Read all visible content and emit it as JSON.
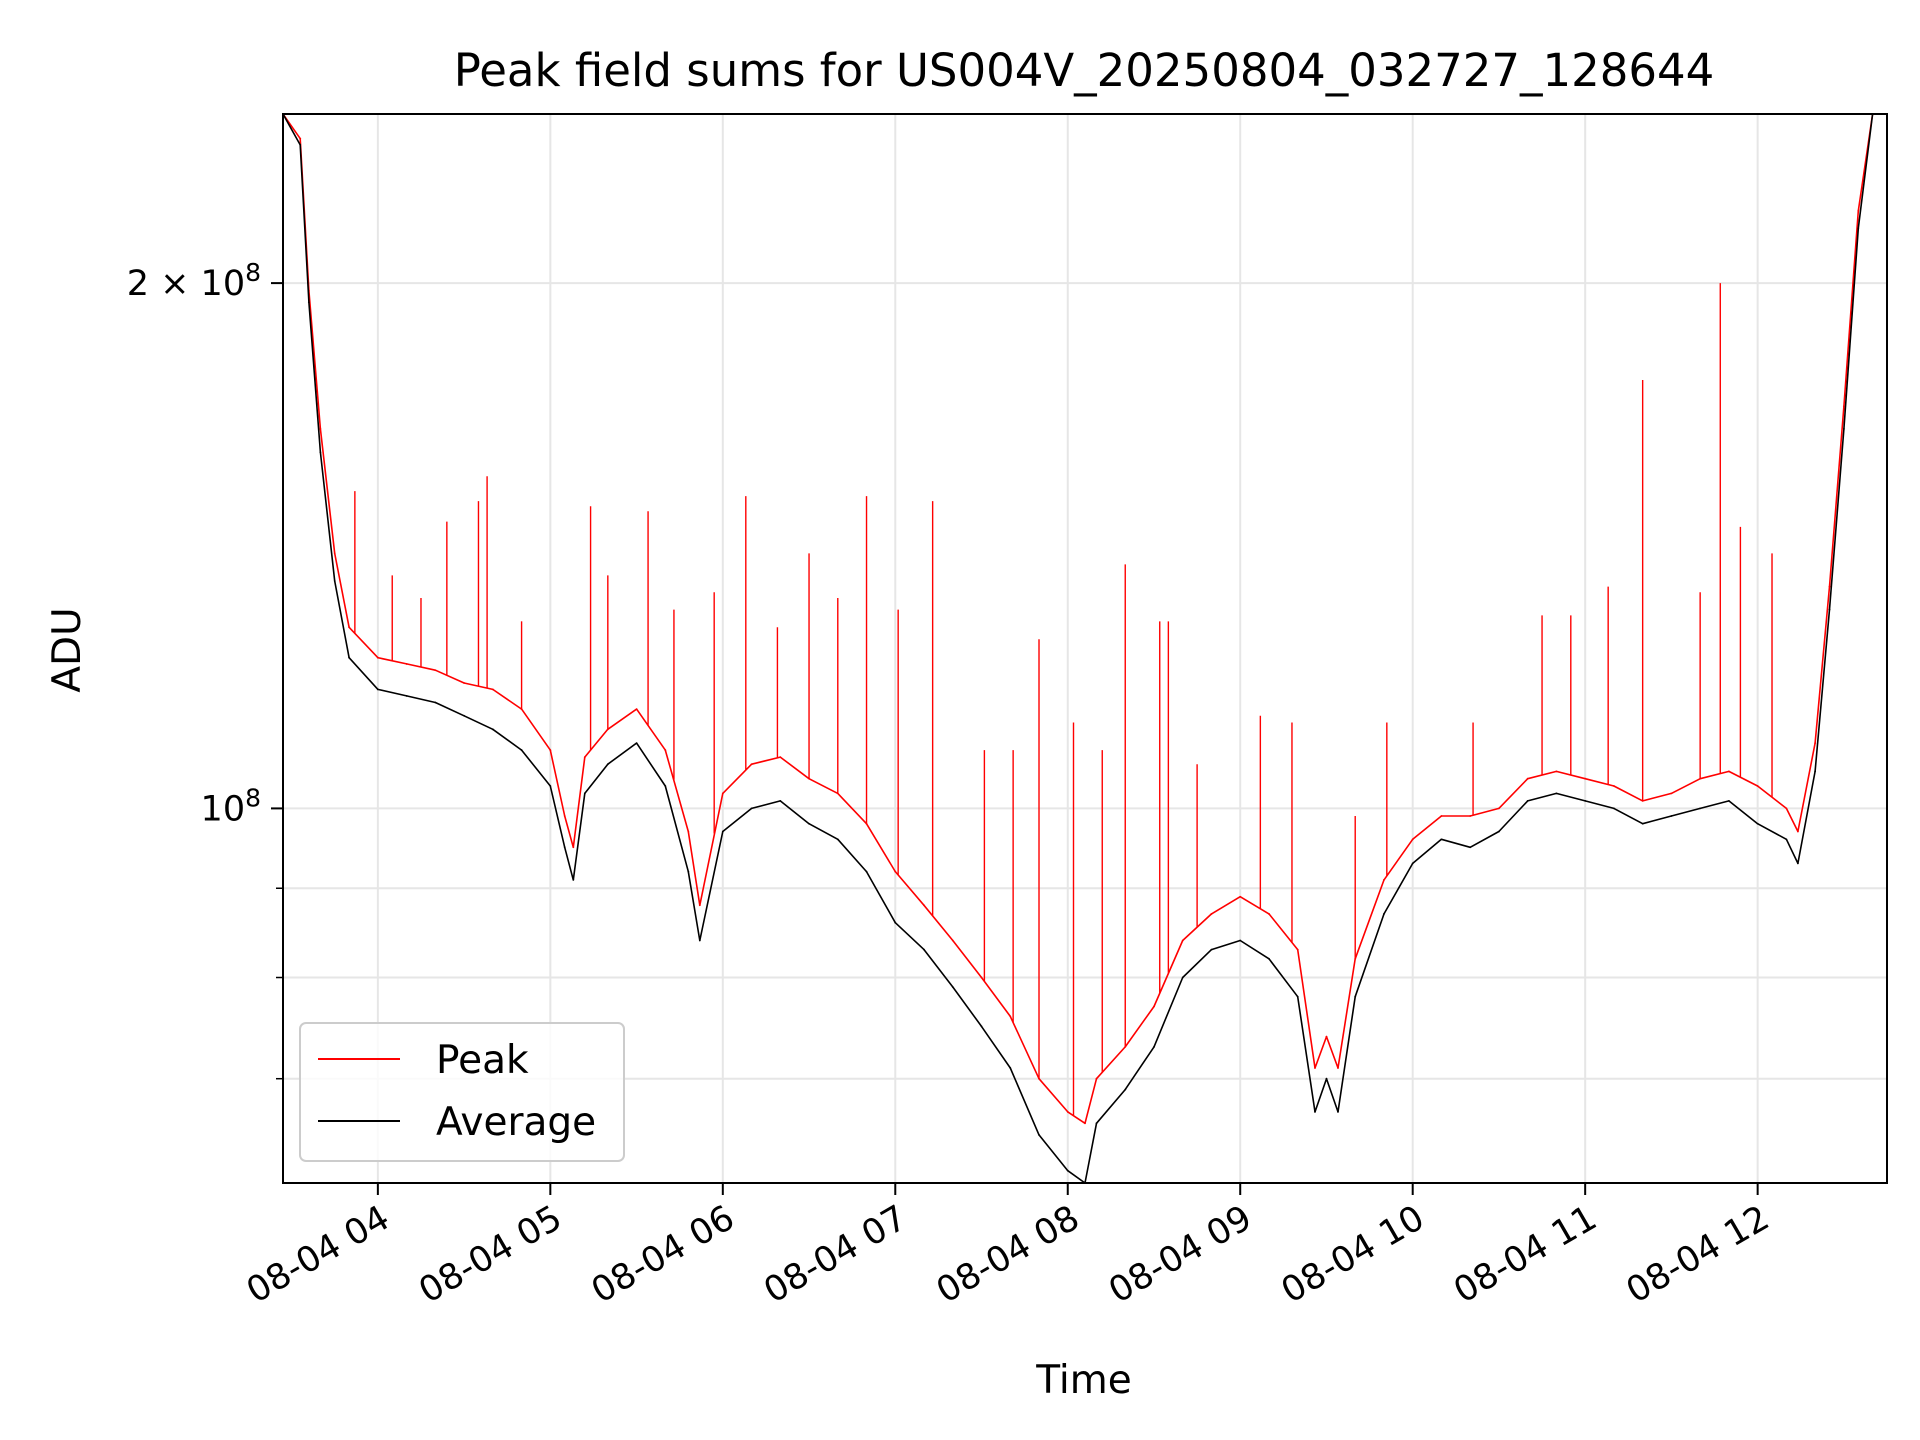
{
  "chart_data": {
    "type": "line",
    "title": "Peak field sums for US004V_20250804_032727_128644",
    "xlabel": "Time",
    "ylabel": "ADU",
    "yscale": "log",
    "xlim": [
      "2025-08-04T03:27",
      "2025-08-04T12:45"
    ],
    "ylim": [
      61000000.0,
      250000000.0
    ],
    "x_ticks": [
      {
        "value": "2025-08-04T04:00",
        "label": "08-04 04"
      },
      {
        "value": "2025-08-04T05:00",
        "label": "08-04 05"
      },
      {
        "value": "2025-08-04T06:00",
        "label": "08-04 06"
      },
      {
        "value": "2025-08-04T07:00",
        "label": "08-04 07"
      },
      {
        "value": "2025-08-04T08:00",
        "label": "08-04 08"
      },
      {
        "value": "2025-08-04T09:00",
        "label": "08-04 09"
      },
      {
        "value": "2025-08-04T10:00",
        "label": "08-04 10"
      },
      {
        "value": "2025-08-04T11:00",
        "label": "08-04 11"
      },
      {
        "value": "2025-08-04T12:00",
        "label": "08-04 12"
      }
    ],
    "y_ticks": [
      {
        "value": 100000000,
        "label": "10^8",
        "base": "10",
        "exp": "8"
      },
      {
        "value": 200000000,
        "label": "2×10^8",
        "base": "2 × 10",
        "exp": "8"
      }
    ],
    "y_minor_ticks": [
      70000000,
      80000000,
      90000000
    ],
    "grid": true,
    "legend_position": "lower-left",
    "series": [
      {
        "name": "Average",
        "color": "#000000",
        "x": [
          "2025-08-04T03:27",
          "2025-08-04T03:33",
          "2025-08-04T03:36",
          "2025-08-04T03:40",
          "2025-08-04T03:45",
          "2025-08-04T03:50",
          "2025-08-04T04:00",
          "2025-08-04T04:10",
          "2025-08-04T04:20",
          "2025-08-04T04:30",
          "2025-08-04T04:40",
          "2025-08-04T04:50",
          "2025-08-04T05:00",
          "2025-08-04T05:05",
          "2025-08-04T05:08",
          "2025-08-04T05:12",
          "2025-08-04T05:20",
          "2025-08-04T05:30",
          "2025-08-04T05:40",
          "2025-08-04T05:48",
          "2025-08-04T05:52",
          "2025-08-04T06:00",
          "2025-08-04T06:10",
          "2025-08-04T06:20",
          "2025-08-04T06:30",
          "2025-08-04T06:40",
          "2025-08-04T06:50",
          "2025-08-04T07:00",
          "2025-08-04T07:10",
          "2025-08-04T07:20",
          "2025-08-04T07:30",
          "2025-08-04T07:40",
          "2025-08-04T07:50",
          "2025-08-04T08:00",
          "2025-08-04T08:06",
          "2025-08-04T08:10",
          "2025-08-04T08:20",
          "2025-08-04T08:30",
          "2025-08-04T08:40",
          "2025-08-04T08:50",
          "2025-08-04T09:00",
          "2025-08-04T09:10",
          "2025-08-04T09:20",
          "2025-08-04T09:26",
          "2025-08-04T09:30",
          "2025-08-04T09:34",
          "2025-08-04T09:40",
          "2025-08-04T09:50",
          "2025-08-04T10:00",
          "2025-08-04T10:10",
          "2025-08-04T10:20",
          "2025-08-04T10:30",
          "2025-08-04T10:40",
          "2025-08-04T10:50",
          "2025-08-04T11:00",
          "2025-08-04T11:10",
          "2025-08-04T11:20",
          "2025-08-04T11:30",
          "2025-08-04T11:40",
          "2025-08-04T11:50",
          "2025-08-04T12:00",
          "2025-08-04T12:10",
          "2025-08-04T12:14",
          "2025-08-04T12:20",
          "2025-08-04T12:25",
          "2025-08-04T12:30",
          "2025-08-04T12:35",
          "2025-08-04T12:40",
          "2025-08-04T12:45"
        ],
        "values": [
          250000000,
          240000000,
          195000000,
          160000000,
          135000000,
          122000000,
          117000000,
          116000000,
          115000000,
          113000000,
          111000000,
          108000000,
          103000000,
          95000000,
          91000000,
          102000000,
          106000000,
          109000000,
          103000000,
          92000000,
          84000000,
          97000000,
          100000000,
          101000000,
          98000000,
          96000000,
          92000000,
          86000000,
          83000000,
          79000000,
          75000000,
          71000000,
          65000000,
          62000000,
          61000000,
          66000000,
          69000000,
          73000000,
          80000000,
          83000000,
          84000000,
          82000000,
          78000000,
          67000000,
          70000000,
          67000000,
          78000000,
          87000000,
          93000000,
          96000000,
          95000000,
          97000000,
          101000000,
          102000000,
          101000000,
          100000000,
          98000000,
          99000000,
          100000000,
          101000000,
          98000000,
          96000000,
          93000000,
          105000000,
          130000000,
          165000000,
          215000000,
          250000000,
          250000000
        ]
      },
      {
        "name": "Peak",
        "color": "#ff0000",
        "x": [
          "2025-08-04T03:27",
          "2025-08-04T03:33",
          "2025-08-04T03:36",
          "2025-08-04T03:40",
          "2025-08-04T03:45",
          "2025-08-04T03:50",
          "2025-08-04T04:00",
          "2025-08-04T04:10",
          "2025-08-04T04:20",
          "2025-08-04T04:30",
          "2025-08-04T04:40",
          "2025-08-04T04:50",
          "2025-08-04T05:00",
          "2025-08-04T05:05",
          "2025-08-04T05:08",
          "2025-08-04T05:12",
          "2025-08-04T05:20",
          "2025-08-04T05:30",
          "2025-08-04T05:40",
          "2025-08-04T05:48",
          "2025-08-04T05:52",
          "2025-08-04T06:00",
          "2025-08-04T06:10",
          "2025-08-04T06:20",
          "2025-08-04T06:30",
          "2025-08-04T06:40",
          "2025-08-04T06:50",
          "2025-08-04T07:00",
          "2025-08-04T07:10",
          "2025-08-04T07:20",
          "2025-08-04T07:30",
          "2025-08-04T07:40",
          "2025-08-04T07:50",
          "2025-08-04T08:00",
          "2025-08-04T08:06",
          "2025-08-04T08:10",
          "2025-08-04T08:20",
          "2025-08-04T08:30",
          "2025-08-04T08:40",
          "2025-08-04T08:50",
          "2025-08-04T09:00",
          "2025-08-04T09:10",
          "2025-08-04T09:20",
          "2025-08-04T09:26",
          "2025-08-04T09:30",
          "2025-08-04T09:34",
          "2025-08-04T09:40",
          "2025-08-04T09:50",
          "2025-08-04T10:00",
          "2025-08-04T10:10",
          "2025-08-04T10:20",
          "2025-08-04T10:30",
          "2025-08-04T10:40",
          "2025-08-04T10:50",
          "2025-08-04T11:00",
          "2025-08-04T11:10",
          "2025-08-04T11:20",
          "2025-08-04T11:30",
          "2025-08-04T11:40",
          "2025-08-04T11:50",
          "2025-08-04T12:00",
          "2025-08-04T12:10",
          "2025-08-04T12:14",
          "2025-08-04T12:20",
          "2025-08-04T12:25",
          "2025-08-04T12:30",
          "2025-08-04T12:35",
          "2025-08-04T12:40",
          "2025-08-04T12:45"
        ],
        "values": [
          250000000,
          242000000,
          198000000,
          165000000,
          140000000,
          127000000,
          122000000,
          121000000,
          120000000,
          118000000,
          117000000,
          114000000,
          108000000,
          99000000,
          95000000,
          107000000,
          111000000,
          114000000,
          108000000,
          97000000,
          88000000,
          102000000,
          106000000,
          107000000,
          104000000,
          102000000,
          98000000,
          92000000,
          88000000,
          84000000,
          80000000,
          76000000,
          70000000,
          67000000,
          66000000,
          70000000,
          73000000,
          77000000,
          84000000,
          87000000,
          89000000,
          87000000,
          83000000,
          71000000,
          74000000,
          71000000,
          82000000,
          91000000,
          96000000,
          99000000,
          99000000,
          100000000,
          104000000,
          105000000,
          104000000,
          103000000,
          101000000,
          102000000,
          104000000,
          105000000,
          103000000,
          100000000,
          97000000,
          109000000,
          134000000,
          170000000,
          220000000,
          250000000,
          250000000
        ],
        "spikes": [
          {
            "x": "2025-08-04T03:52",
            "y": 152000000
          },
          {
            "x": "2025-08-04T04:05",
            "y": 136000000
          },
          {
            "x": "2025-08-04T04:15",
            "y": 132000000
          },
          {
            "x": "2025-08-04T04:24",
            "y": 146000000
          },
          {
            "x": "2025-08-04T04:35",
            "y": 150000000
          },
          {
            "x": "2025-08-04T04:38",
            "y": 155000000
          },
          {
            "x": "2025-08-04T04:50",
            "y": 128000000
          },
          {
            "x": "2025-08-04T05:14",
            "y": 149000000
          },
          {
            "x": "2025-08-04T05:20",
            "y": 136000000
          },
          {
            "x": "2025-08-04T05:34",
            "y": 148000000
          },
          {
            "x": "2025-08-04T05:43",
            "y": 130000000
          },
          {
            "x": "2025-08-04T05:57",
            "y": 133000000
          },
          {
            "x": "2025-08-04T06:08",
            "y": 151000000
          },
          {
            "x": "2025-08-04T06:19",
            "y": 127000000
          },
          {
            "x": "2025-08-04T06:30",
            "y": 140000000
          },
          {
            "x": "2025-08-04T06:40",
            "y": 132000000
          },
          {
            "x": "2025-08-04T06:50",
            "y": 151000000
          },
          {
            "x": "2025-08-04T07:01",
            "y": 130000000
          },
          {
            "x": "2025-08-04T07:13",
            "y": 150000000
          },
          {
            "x": "2025-08-04T07:31",
            "y": 108000000
          },
          {
            "x": "2025-08-04T07:41",
            "y": 108000000
          },
          {
            "x": "2025-08-04T07:50",
            "y": 125000000
          },
          {
            "x": "2025-08-04T08:02",
            "y": 112000000
          },
          {
            "x": "2025-08-04T08:12",
            "y": 108000000
          },
          {
            "x": "2025-08-04T08:20",
            "y": 138000000
          },
          {
            "x": "2025-08-04T08:32",
            "y": 128000000
          },
          {
            "x": "2025-08-04T08:35",
            "y": 128000000
          },
          {
            "x": "2025-08-04T08:45",
            "y": 106000000
          },
          {
            "x": "2025-08-04T09:07",
            "y": 113000000
          },
          {
            "x": "2025-08-04T09:18",
            "y": 112000000
          },
          {
            "x": "2025-08-04T09:40",
            "y": 99000000
          },
          {
            "x": "2025-08-04T09:51",
            "y": 112000000
          },
          {
            "x": "2025-08-04T10:21",
            "y": 112000000
          },
          {
            "x": "2025-08-04T10:45",
            "y": 129000000
          },
          {
            "x": "2025-08-04T10:55",
            "y": 129000000
          },
          {
            "x": "2025-08-04T11:08",
            "y": 134000000
          },
          {
            "x": "2025-08-04T11:20",
            "y": 176000000
          },
          {
            "x": "2025-08-04T11:40",
            "y": 133000000
          },
          {
            "x": "2025-08-04T11:47",
            "y": 200000000
          },
          {
            "x": "2025-08-04T11:54",
            "y": 145000000
          },
          {
            "x": "2025-08-04T12:05",
            "y": 140000000
          }
        ]
      }
    ]
  }
}
